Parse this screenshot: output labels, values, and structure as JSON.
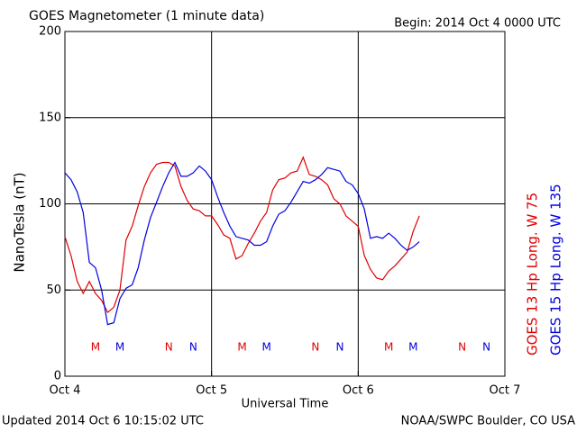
{
  "chart_data": {
    "type": "line",
    "title": "GOES Magnetometer (1 minute data)",
    "subtitle": "Begin:  2014 Oct 4 0000 UTC",
    "y_label": "NanoTesla (nT)",
    "x_label": "Universal Time",
    "footer_left": "Updated 2014 Oct  6 10:15:02 UTC",
    "footer_right": "NOAA/SWPC Boulder, CO USA",
    "xlim": [
      0,
      72
    ],
    "xticks": [
      {
        "value": 0,
        "label": "Oct 4"
      },
      {
        "value": 24,
        "label": "Oct 5"
      },
      {
        "value": 48,
        "label": "Oct 6"
      },
      {
        "value": 72,
        "label": "Oct 7"
      }
    ],
    "ylim": [
      0,
      200
    ],
    "yticks": [
      0,
      50,
      100,
      150,
      200
    ],
    "grid": true,
    "x": [
      0,
      1,
      2,
      3,
      4,
      5,
      6,
      7,
      8,
      9,
      10,
      11,
      12,
      13,
      14,
      15,
      16,
      17,
      18,
      19,
      20,
      21,
      22,
      23,
      24,
      25,
      26,
      27,
      28,
      29,
      30,
      31,
      32,
      33,
      34,
      35,
      36,
      37,
      38,
      39,
      40,
      41,
      42,
      43,
      44,
      45,
      46,
      47,
      48,
      49,
      50,
      51,
      52,
      53,
      54,
      55,
      56,
      57,
      58
    ],
    "series": [
      {
        "name": "GOES 13 Hp  Long. W 75",
        "color": "#e00000",
        "values": [
          81,
          70,
          55,
          48,
          55,
          48,
          44,
          37,
          40,
          50,
          79,
          87,
          99,
          110,
          118,
          123,
          124,
          124,
          122,
          110,
          102,
          97,
          96,
          93,
          93,
          88,
          82,
          80,
          68,
          70,
          77,
          83,
          90,
          95,
          108,
          114,
          115,
          118,
          119,
          127,
          117,
          116,
          114,
          111,
          103,
          100,
          93,
          90,
          87,
          70,
          62,
          57,
          56,
          61,
          64,
          68,
          72,
          84,
          93
        ]
      },
      {
        "name": "GOES 15 Hp  Long. W 135",
        "color": "#0000e0",
        "values": [
          118,
          114,
          107,
          95,
          66,
          63,
          50,
          30,
          31,
          45,
          51,
          53,
          63,
          79,
          92,
          101,
          110,
          118,
          124,
          116,
          116,
          118,
          122,
          119,
          114,
          104,
          95,
          87,
          81,
          80,
          79,
          76,
          76,
          78,
          87,
          94,
          96,
          101,
          107,
          113,
          112,
          114,
          117,
          121,
          120,
          119,
          113,
          111,
          106,
          97,
          80,
          81,
          80,
          83,
          80,
          76,
          73,
          75,
          78
        ]
      }
    ],
    "annotations": [
      {
        "text": "M",
        "x": 5,
        "series": 0
      },
      {
        "text": "M",
        "x": 9,
        "series": 1
      },
      {
        "text": "N",
        "x": 17,
        "series": 0
      },
      {
        "text": "N",
        "x": 21,
        "series": 1
      },
      {
        "text": "M",
        "x": 29,
        "series": 0
      },
      {
        "text": "M",
        "x": 33,
        "series": 1
      },
      {
        "text": "N",
        "x": 41,
        "series": 0
      },
      {
        "text": "N",
        "x": 45,
        "series": 1
      },
      {
        "text": "M",
        "x": 53,
        "series": 0
      },
      {
        "text": "M",
        "x": 57,
        "series": 1
      },
      {
        "text": "N",
        "x": 65,
        "series": 0
      },
      {
        "text": "N",
        "x": 69,
        "series": 1
      }
    ]
  }
}
